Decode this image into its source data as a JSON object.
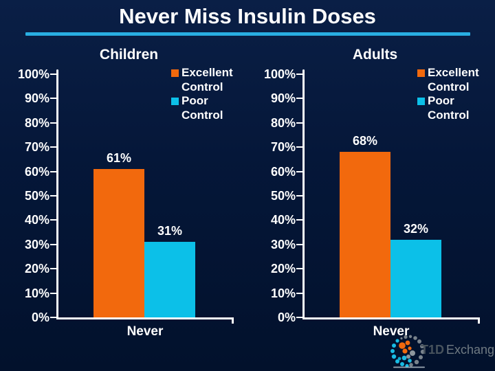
{
  "slide": {
    "title": "Never Miss Insulin Doses"
  },
  "colors": {
    "background": "#051739",
    "title_underline": "#29AEE2",
    "excellent": "#F2690D",
    "poor": "#0CC0E8",
    "axis": "#FFFFFF",
    "text": "#FFFFFF"
  },
  "chart_data": [
    {
      "type": "bar",
      "title": "Children",
      "categories": [
        "Never"
      ],
      "series": [
        {
          "name": "Excellent Control",
          "color": "#F2690D",
          "values": [
            61
          ],
          "labels": [
            "61%"
          ]
        },
        {
          "name": "Poor Control",
          "color": "#0CC0E8",
          "values": [
            31
          ],
          "labels": [
            "31%"
          ]
        }
      ],
      "yticks": [
        "100%",
        "90%",
        "80%",
        "70%",
        "60%",
        "50%",
        "40%",
        "30%",
        "20%",
        "10%",
        "0%"
      ],
      "ylim": [
        0,
        100
      ],
      "grid": false,
      "legend_position": "top-right"
    },
    {
      "type": "bar",
      "title": "Adults",
      "categories": [
        "Never"
      ],
      "series": [
        {
          "name": "Excellent Control",
          "color": "#F2690D",
          "values": [
            68
          ],
          "labels": [
            "68%"
          ]
        },
        {
          "name": "Poor Control",
          "color": "#0CC0E8",
          "values": [
            32
          ],
          "labels": [
            "32%"
          ]
        }
      ],
      "yticks": [
        "100%",
        "90%",
        "80%",
        "70%",
        "60%",
        "50%",
        "40%",
        "30%",
        "20%",
        "10%",
        "0%"
      ],
      "ylim": [
        0,
        100
      ],
      "grid": false,
      "legend_position": "top-right"
    }
  ],
  "logo": {
    "name": "T1D Exchange",
    "text_bold": "T1D",
    "text_light": "Exchange"
  }
}
